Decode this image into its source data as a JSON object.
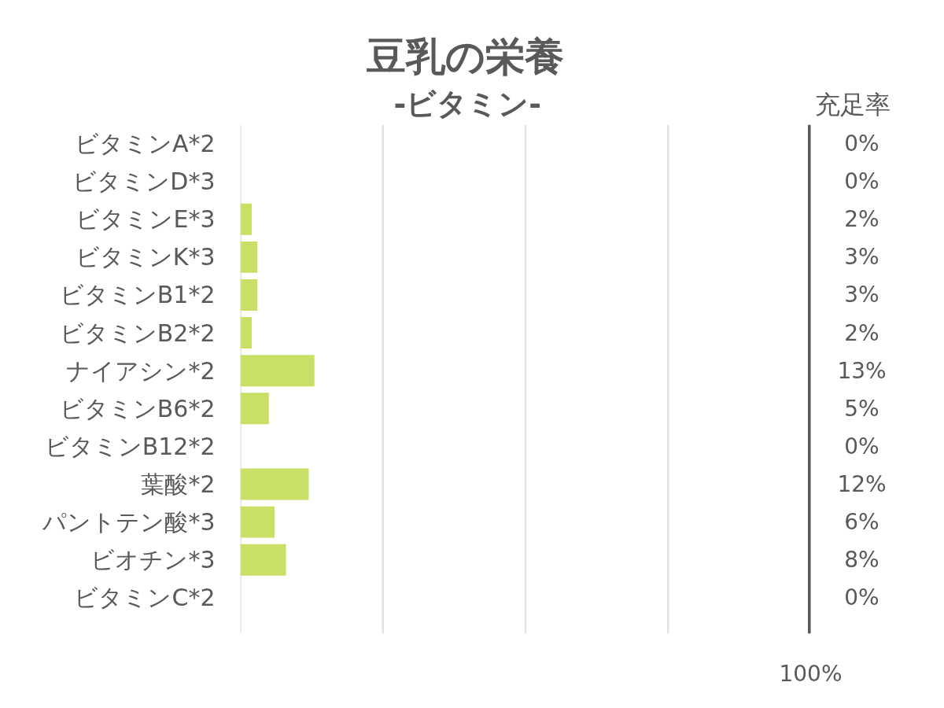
{
  "chart_data": {
    "type": "bar",
    "orientation": "horizontal",
    "title": "豆乳の栄養",
    "subtitle": "-ビタミン-",
    "categories": [
      "ビタミンA*2",
      "ビタミンD*3",
      "ビタミンE*3",
      "ビタミンK*3",
      "ビタミンB1*2",
      "ビタミンB2*2",
      "ナイアシン*2",
      "ビタミンB6*2",
      "ビタミンB12*2",
      "葉酸*2",
      "パントテン酸*3",
      "ビオチン*3",
      "ビタミンC*2"
    ],
    "values": [
      0,
      0,
      2,
      3,
      3,
      2,
      13,
      5,
      0,
      12,
      6,
      8,
      0
    ],
    "value_labels": [
      "0%",
      "0%",
      "2%",
      "3%",
      "3%",
      "2%",
      "13%",
      "5%",
      "0%",
      "12%",
      "6%",
      "8%",
      "0%"
    ],
    "color": "#c8e066",
    "xlim": [
      0,
      100
    ],
    "xticks": [
      {
        "value": 0,
        "label": null
      },
      {
        "value": 25,
        "label": null
      },
      {
        "value": 50,
        "label": null
      },
      {
        "value": 75,
        "label": null
      },
      {
        "value": 100,
        "label": "100%"
      }
    ],
    "grid": "x",
    "ref_lines": [
      {
        "axis": "x",
        "value": 100,
        "color": "#595959"
      }
    ],
    "annotations": [
      "充足率"
    ]
  }
}
